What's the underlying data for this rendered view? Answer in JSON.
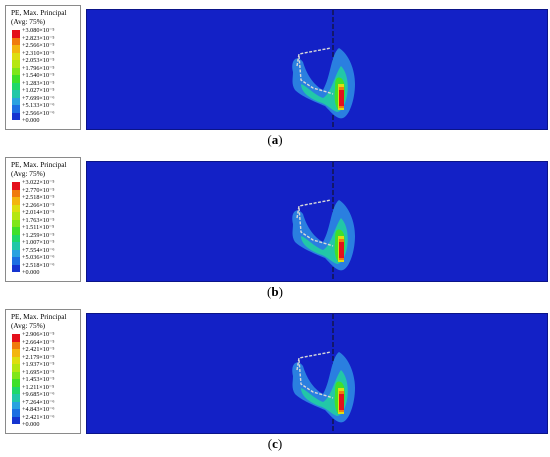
{
  "colors": {
    "background": "#1321c6",
    "contour_scale": [
      "#e4101b",
      "#f07b0d",
      "#f3b50f",
      "#dede10",
      "#b5e612",
      "#7fe61a",
      "#3fe02a",
      "#1fd86a",
      "#22c7a8",
      "#2aa2e0",
      "#1d6fe2",
      "#1534d0"
    ]
  },
  "panels": [
    {
      "caption_label": "a",
      "legend_title_line1": "PE, Max. Principal",
      "legend_title_line2": "(Avg: 75%)",
      "legend_values": [
        "+3.080×10⁻⁵",
        "+2.823×10⁻⁵",
        "+2.566×10⁻⁵",
        "+2.310×10⁻⁵",
        "+2.053×10⁻⁵",
        "+1.796×10⁻⁵",
        "+1.540×10⁻⁵",
        "+1.283×10⁻⁵",
        "+1.027×10⁻⁵",
        "+7.699×10⁻⁶",
        "+5.133×10⁻⁶",
        "+2.566×10⁻⁶",
        "+0.000"
      ]
    },
    {
      "caption_label": "b",
      "legend_title_line1": "PE, Max. Principal",
      "legend_title_line2": "(Avg: 75%)",
      "legend_values": [
        "+3.022×10⁻⁵",
        "+2.770×10⁻⁵",
        "+2.518×10⁻⁵",
        "+2.266×10⁻⁵",
        "+2.014×10⁻⁵",
        "+1.763×10⁻⁵",
        "+1.511×10⁻⁵",
        "+1.259×10⁻⁵",
        "+1.007×10⁻⁵",
        "+7.554×10⁻⁶",
        "+5.036×10⁻⁶",
        "+2.518×10⁻⁶",
        "+0.000"
      ]
    },
    {
      "caption_label": "c",
      "legend_title_line1": "PE, Max. Principal",
      "legend_title_line2": "(Avg: 75%)",
      "legend_values": [
        "+2.906×10⁻⁵",
        "+2.664×10⁻⁵",
        "+2.421×10⁻⁵",
        "+2.179×10⁻⁵",
        "+1.937×10⁻⁵",
        "+1.695×10⁻⁵",
        "+1.453×10⁻⁵",
        "+1.211×10⁻⁵",
        "+9.685×10⁻⁶",
        "+7.264×10⁻⁶",
        "+4.843×10⁻⁶",
        "+2.421×10⁻⁶",
        "+0.000"
      ]
    }
  ]
}
